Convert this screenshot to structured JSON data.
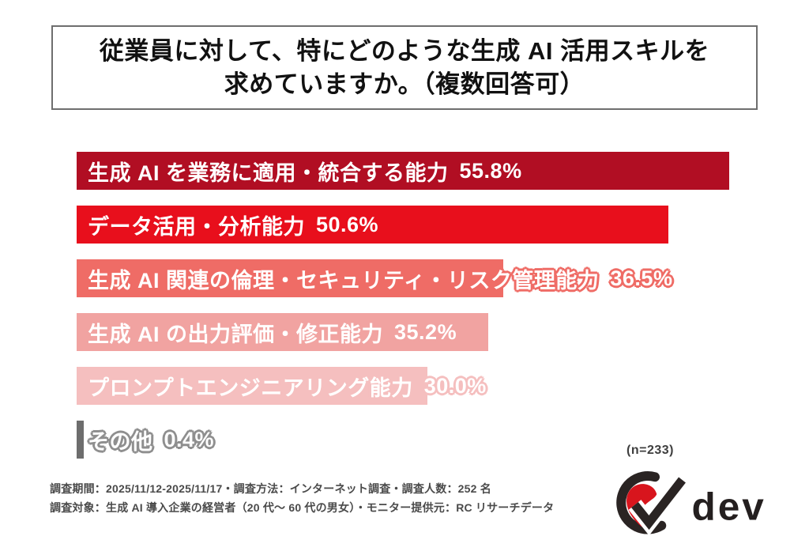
{
  "title": {
    "line1": "従業員に対して、特にどのような生成 AI 活用スキルを",
    "line2": "求めていますか。（複数回答可）"
  },
  "chart_data": {
    "type": "bar",
    "orientation": "horizontal",
    "title": "従業員に対して、特にどのような生成 AI 活用スキルを求めていますか。（複数回答可）",
    "categories": [
      "生成 AI を業務に適用・統合する能力",
      "データ活用・分析能力",
      "生成 AI 関連の倫理・セキュリティ・リスク管理能力",
      "生成 AI の出力評価・修正能力",
      "プロンプトエンジニアリング能力",
      "その他"
    ],
    "values": [
      55.8,
      50.6,
      36.5,
      35.2,
      30.0,
      0.4
    ],
    "value_labels": [
      "55.8%",
      "50.6%",
      "36.5%",
      "35.2%",
      "30.0%",
      "0.4%"
    ],
    "bar_colors": [
      "#b10e23",
      "#e80f1c",
      "#ef6c66",
      "#f1a3a1",
      "#f5bfbf",
      "#6d6d6d"
    ],
    "outline_colors": [
      "#b10e23",
      "#e80f1c",
      "#ef6c66",
      "#f1a3a1",
      "#f5bfbf",
      "#8f8f8f"
    ],
    "xlim": [
      0,
      60
    ],
    "grid": false,
    "legend": false,
    "n_label": "(n=233)"
  },
  "footer": {
    "line1": "調査期間：2025/11/12-2025/11/17・調査方法：インターネット調査・調査人数：252 名",
    "line2": "調査対象：生成 AI 導入企業の経営者（20 代〜 60 代の男女）・モニター提供元：RC リサーチデータ"
  },
  "logo": {
    "text": "dev",
    "accent_color": "#d8151d",
    "mark_color": "#2a2423"
  }
}
